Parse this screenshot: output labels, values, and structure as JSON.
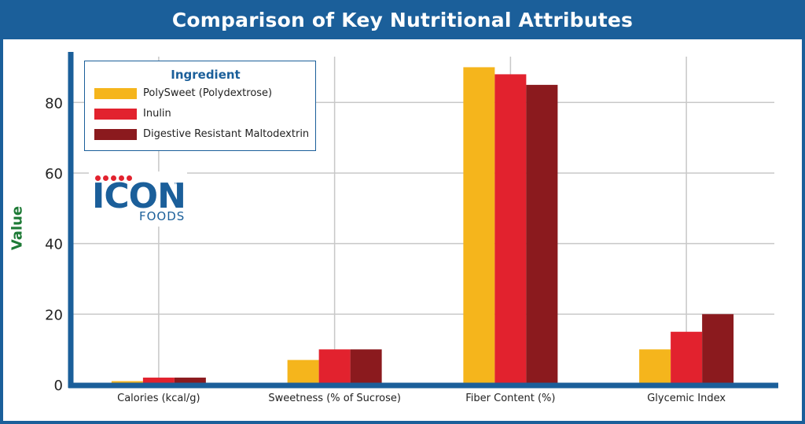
{
  "chart_data": {
    "type": "bar",
    "title": "Comparison of Key Nutritional Attributes",
    "xlabel": "",
    "ylabel": "Value",
    "ylim": [
      0,
      93
    ],
    "yticks": [
      0,
      20,
      40,
      60,
      80
    ],
    "grid": true,
    "legend_title": "Ingredient",
    "legend_position": "top-left",
    "categories": [
      "Calories (kcal/g)",
      "Sweetness (% of Sucrose)",
      "Fiber Content (%)",
      "Glycemic Index"
    ],
    "series": [
      {
        "name": "PolySweet (Polydextrose)",
        "color": "#f5b51c",
        "values": [
          1,
          7,
          90,
          10
        ]
      },
      {
        "name": "Inulin",
        "color": "#e2222e",
        "values": [
          2,
          10,
          88,
          15
        ]
      },
      {
        "name": "Digestive Resistant Maltodextrin",
        "color": "#8b1a1e",
        "values": [
          2,
          10,
          85,
          20
        ]
      }
    ]
  },
  "logo": {
    "word": "ICON",
    "sub": "FOODS",
    "tm": "™"
  },
  "colors": {
    "frame": "#1b5f9a",
    "axis": "#1b5f9a",
    "ylabel": "#1e7a36",
    "grid": "#c8c8c8"
  }
}
